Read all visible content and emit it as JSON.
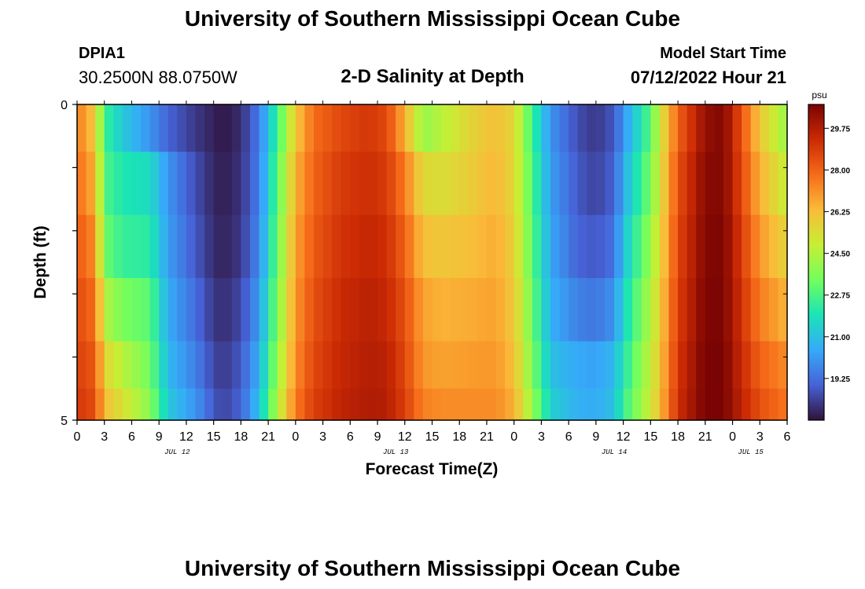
{
  "header": {
    "title": "University of Southern Mississippi Ocean Cube",
    "station_id": "DPIA1",
    "coords": "30.2500N  88.0750W",
    "plot_title": "2-D Salinity at Depth",
    "start_label": "Model Start Time",
    "start_value": "07/12/2022 Hour 21"
  },
  "footer": {
    "title": "University of Southern Mississippi Ocean Cube"
  },
  "chart_data": {
    "type": "heatmap",
    "xlabel": "Forecast Time(Z)",
    "ylabel": "Depth (ft)",
    "x_tick_labels": [
      "0",
      "3",
      "6",
      "9",
      "12",
      "15",
      "18",
      "21",
      "0",
      "3",
      "6",
      "9",
      "12",
      "15",
      "18",
      "21",
      "0",
      "3",
      "6",
      "9",
      "12",
      "15",
      "18",
      "21",
      "0",
      "3",
      "6"
    ],
    "day_labels": [
      {
        "label": "JUL 12",
        "hour": 11
      },
      {
        "label": "JUL 13",
        "hour": 35
      },
      {
        "label": "JUL 14",
        "hour": 59
      },
      {
        "label": "JUL 15",
        "hour": 74
      }
    ],
    "x_range_hours": [
      0,
      78
    ],
    "depth_range": [
      0,
      5
    ],
    "y_tick_labels": [
      "0",
      "5"
    ],
    "depth_rows": [
      0.25,
      1.25,
      2.25,
      3.25,
      4.25,
      4.75
    ],
    "colorbar": {
      "unit": "psu",
      "min": 17.5,
      "max": 30.75,
      "ticks": [
        "29.75",
        "28.00",
        "26.25",
        "24.50",
        "22.75",
        "21.00",
        "19.25"
      ],
      "colors": [
        "#30123b",
        "#4662d7",
        "#36aaf9",
        "#1ae4b6",
        "#72fe5e",
        "#c7ef34",
        "#fabb39",
        "#f66b19",
        "#cb2a04",
        "#7a0403"
      ]
    },
    "key_hours": [
      0,
      2,
      3,
      5,
      8,
      10,
      13,
      15,
      16,
      18,
      20,
      22,
      24,
      26,
      29,
      32,
      34,
      36,
      38,
      40,
      43,
      46,
      48,
      50,
      52,
      55,
      57,
      59,
      60,
      63,
      64,
      66,
      69,
      71,
      72,
      75,
      78
    ],
    "salinity_psu": [
      [
        27.5,
        26.0,
        22.5,
        21.2,
        20.0,
        19.0,
        18.2,
        17.8,
        17.6,
        18.0,
        19.5,
        22.5,
        26.0,
        27.8,
        28.6,
        29.0,
        28.6,
        26.5,
        24.0,
        24.6,
        25.6,
        26.2,
        25.6,
        22.5,
        20.0,
        18.6,
        18.2,
        18.8,
        20.0,
        23.0,
        25.0,
        28.0,
        30.3,
        30.6,
        29.5,
        26.0,
        24.0
      ],
      [
        27.8,
        26.5,
        22.8,
        22.0,
        21.7,
        20.0,
        18.6,
        17.9,
        17.7,
        18.1,
        19.6,
        23.0,
        26.5,
        28.0,
        28.9,
        29.2,
        28.9,
        27.5,
        25.5,
        25.4,
        25.8,
        26.4,
        25.6,
        22.8,
        20.2,
        18.8,
        18.4,
        19.0,
        20.5,
        23.5,
        25.2,
        28.4,
        30.5,
        30.6,
        29.6,
        26.5,
        24.8
      ],
      [
        28.2,
        27.2,
        23.3,
        22.4,
        22.2,
        20.2,
        18.8,
        18.0,
        17.8,
        18.2,
        19.8,
        23.3,
        26.8,
        28.2,
        29.1,
        29.4,
        29.2,
        28.0,
        26.2,
        26.0,
        26.2,
        26.6,
        25.8,
        23.0,
        20.4,
        19.0,
        18.8,
        19.3,
        21.0,
        24.0,
        25.5,
        28.6,
        30.6,
        30.7,
        29.8,
        27.0,
        25.6
      ],
      [
        28.5,
        27.8,
        24.5,
        23.5,
        23.0,
        20.5,
        19.2,
        18.2,
        18.0,
        18.5,
        20.2,
        23.6,
        27.0,
        28.4,
        29.3,
        29.6,
        29.4,
        28.4,
        26.8,
        26.5,
        26.6,
        26.8,
        26.0,
        23.3,
        20.6,
        19.6,
        19.4,
        20.0,
        21.5,
        24.5,
        25.8,
        28.8,
        30.7,
        30.7,
        29.9,
        27.5,
        26.4
      ],
      [
        28.8,
        28.2,
        25.6,
        24.6,
        23.4,
        20.8,
        19.6,
        18.5,
        18.2,
        18.8,
        20.6,
        24.0,
        27.2,
        28.6,
        29.4,
        29.7,
        29.6,
        28.6,
        27.0,
        26.8,
        26.9,
        27.0,
        26.2,
        23.6,
        21.0,
        20.4,
        20.3,
        20.8,
        22.0,
        24.8,
        26.0,
        29.0,
        30.8,
        30.8,
        30.0,
        28.0,
        27.2
      ],
      [
        29.0,
        28.5,
        26.2,
        25.3,
        23.8,
        21.2,
        20.0,
        18.8,
        18.4,
        19.0,
        21.0,
        24.5,
        27.5,
        28.8,
        29.5,
        29.8,
        29.7,
        28.8,
        27.4,
        27.2,
        27.2,
        27.2,
        26.5,
        24.0,
        21.4,
        20.6,
        20.5,
        21.0,
        22.4,
        25.0,
        26.2,
        29.2,
        30.8,
        30.8,
        30.1,
        28.4,
        27.6
      ]
    ]
  }
}
